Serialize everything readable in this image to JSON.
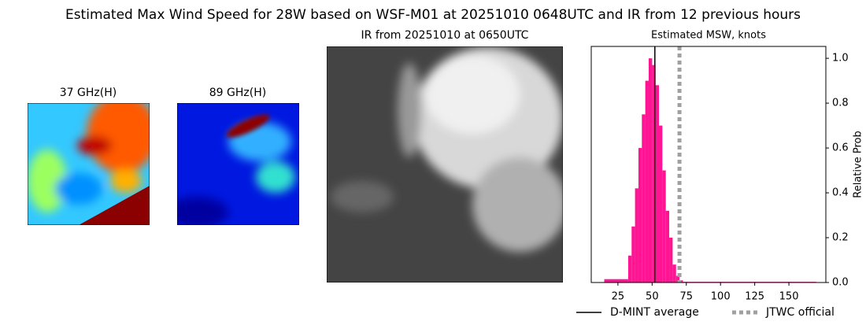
{
  "title": "Estimated Max Wind Speed for 28W based on WSF-M01 at 20251010 0648UTC and IR from 12 previous hours",
  "panels": [
    {
      "title": "37 GHz(H)"
    },
    {
      "title": "89 GHz(H)"
    },
    {
      "title": "IR from 20251010 at 0650UTC"
    }
  ],
  "chart_data": {
    "type": "histogram",
    "title": "Estimated MSW, knots",
    "ylabel": "Relative Prob",
    "color": "#ff1493",
    "bins": [
      15,
      32.5,
      35,
      37.5,
      40,
      42.5,
      45,
      47.5,
      50,
      52.5,
      55,
      57.5,
      60,
      62.5,
      65,
      67.5,
      70,
      72.5,
      170
    ],
    "counts": [
      0.015,
      0.12,
      0.25,
      0.42,
      0.6,
      0.75,
      0.9,
      1.0,
      0.97,
      0.88,
      0.7,
      0.5,
      0.32,
      0.2,
      0.08,
      0.03,
      0.01,
      0.003
    ],
    "xlim": [
      5.5,
      177
    ],
    "ylim": [
      0,
      1.053
    ],
    "xticks": [
      25,
      50,
      75,
      100,
      125,
      150
    ],
    "yticks": [
      {
        "value": 0,
        "label": "0.0"
      },
      {
        "value": 0.2,
        "label": "0.2"
      },
      {
        "value": 0.4,
        "label": "0.4"
      },
      {
        "value": 0.6,
        "label": "0.6"
      },
      {
        "value": 0.8,
        "label": "0.8"
      },
      {
        "value": 1,
        "label": "1.0"
      }
    ],
    "lines": [
      {
        "name": "D-MINT average",
        "color": "#000000",
        "value": 52,
        "style": "solid"
      },
      {
        "name": "JTWC official",
        "color": "#a0a0a0",
        "value": 70,
        "style": "dotted"
      }
    ]
  }
}
